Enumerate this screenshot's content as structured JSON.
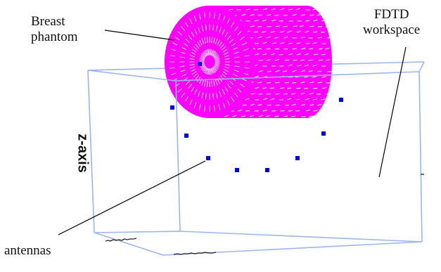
{
  "labels": {
    "phantom_line1": "Breast",
    "phantom_line2": "phantom",
    "fdtd_line1": "FDTD",
    "fdtd_line2": "workspace",
    "antennas": "antennas",
    "z_axis": "z-axis"
  },
  "colors": {
    "box_edge": "#9fb4ee",
    "phantom_fill": "#ff00ff",
    "phantom_hatch": "#ffd2ff",
    "antenna": "#0000e0",
    "leader": "#000000"
  },
  "antenna_count": 9
}
